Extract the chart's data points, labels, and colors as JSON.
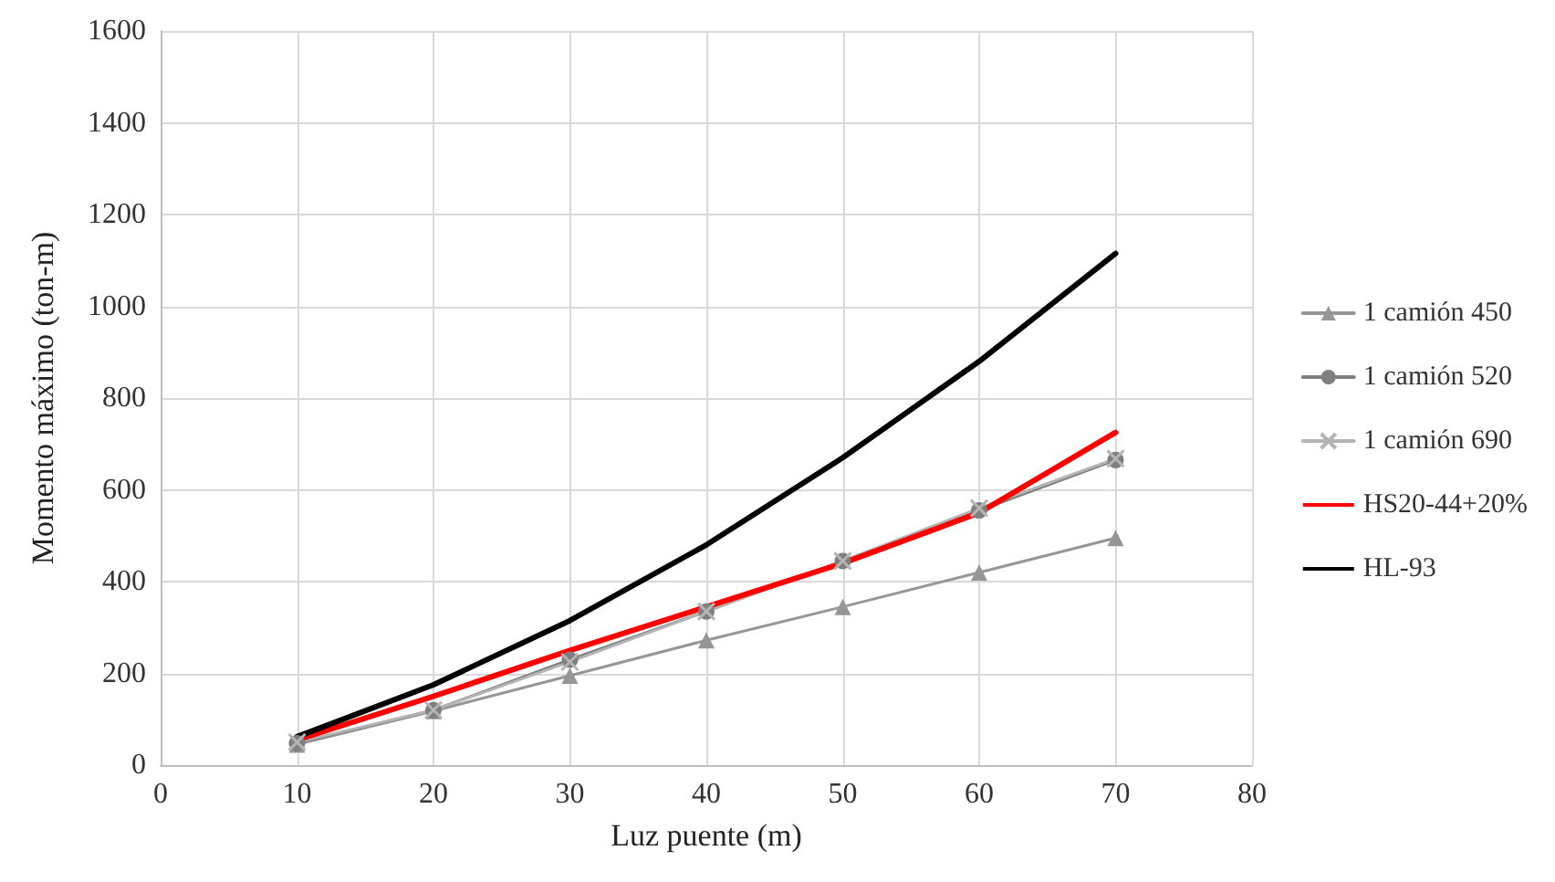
{
  "chart_data": {
    "type": "line",
    "xlabel": "Luz puente (m)",
    "ylabel": "Momento máximo (ton-m)",
    "x": [
      10,
      20,
      30,
      40,
      50,
      60,
      70
    ],
    "series": [
      {
        "name": "1 camión 450",
        "color": "#969696",
        "marker": "triangle",
        "values": [
          45,
          118,
          195,
          272,
          345,
          420,
          495
        ]
      },
      {
        "name": "1 camión 520",
        "color": "#7f7f7f",
        "marker": "circle",
        "values": [
          48,
          120,
          230,
          335,
          445,
          555,
          665
        ]
      },
      {
        "name": "1 camión 690",
        "color": "#b4b4b4",
        "marker": "cross",
        "values": [
          50,
          120,
          225,
          335,
          445,
          560,
          668
        ]
      },
      {
        "name": "HS20-44+20%",
        "color": "#ff0000",
        "marker": "none",
        "values": [
          55,
          150,
          250,
          345,
          440,
          550,
          725
        ]
      },
      {
        "name": "HL-93",
        "color": "#000000",
        "marker": "none",
        "values": [
          62,
          175,
          315,
          480,
          670,
          880,
          1115
        ]
      }
    ],
    "xlim": [
      0,
      80
    ],
    "xticks": [
      0,
      10,
      20,
      30,
      40,
      50,
      60,
      70,
      80
    ],
    "ylim": [
      0,
      1600
    ],
    "yticks": [
      0,
      200,
      400,
      600,
      800,
      1000,
      1200,
      1400,
      1600
    ],
    "grid": true,
    "legend": "right"
  }
}
